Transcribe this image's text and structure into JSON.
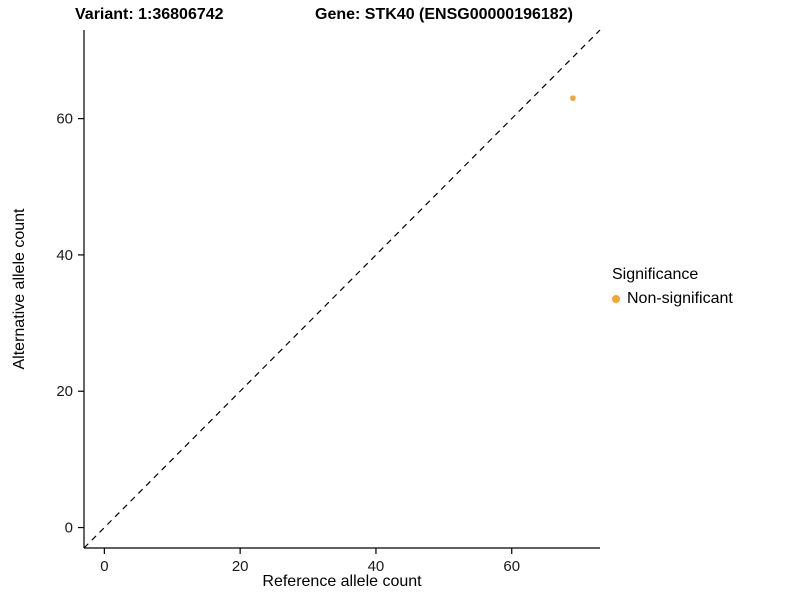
{
  "chart_data": {
    "type": "scatter",
    "title_left": "Variant: 1:36806742",
    "title_right": "Gene: STK40 (ENSG00000196182)",
    "xlabel": "Reference allele count",
    "ylabel": "Alternative allele count",
    "xlim": [
      -3,
      73
    ],
    "ylim": [
      -3,
      73
    ],
    "xticks": [
      0,
      20,
      40,
      60
    ],
    "yticks": [
      0,
      20,
      40,
      60
    ],
    "grid": false,
    "legend_position": "right",
    "identity_line": {
      "style": "dashed",
      "slope": 1,
      "intercept": 0,
      "color": "#000000"
    },
    "series": [
      {
        "name": "Non-significant",
        "color": "#F8A42D",
        "point_radius": 2.8,
        "points": [
          {
            "x": 69,
            "y": 63
          }
        ]
      }
    ],
    "legend": {
      "title": "Significance",
      "entries": [
        {
          "label": "Non-significant",
          "color": "#F8A42D"
        }
      ]
    }
  }
}
